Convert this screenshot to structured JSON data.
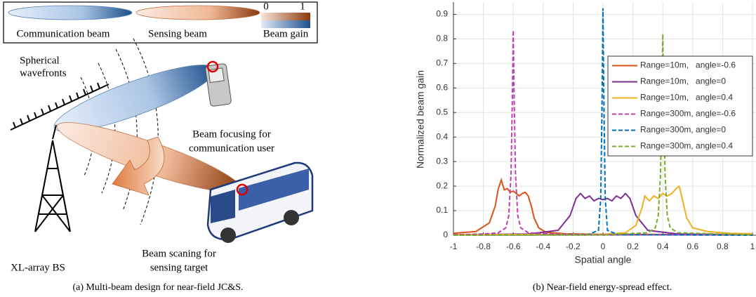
{
  "figure_a": {
    "legend": {
      "items": [
        "Communication beam",
        "Sensing beam",
        "Beam gain"
      ],
      "colorbar_ticks": [
        "0",
        "1"
      ]
    },
    "wavefront_label": [
      "Spherical",
      "wavefronts"
    ],
    "focus_label": [
      "Beam focusing for",
      "communication user"
    ],
    "bs_label": "XL-array BS",
    "scan_label": [
      "Beam scaning for",
      "sensing target"
    ],
    "caption": "(a) Multi-beam design for near-field JC&S."
  },
  "figure_b": {
    "caption": "(b) Near-field energy-spread effect."
  },
  "chart_data": {
    "type": "line",
    "xlabel": "Spatial angle",
    "ylabel": "Normalized beam gain",
    "xlim": [
      -1,
      1
    ],
    "ylim": [
      0,
      0.95
    ],
    "xticks": [
      -1,
      -0.8,
      -0.6,
      -0.4,
      -0.2,
      0,
      0.2,
      0.4,
      0.6,
      0.8,
      1
    ],
    "yticks": [
      0,
      0.1,
      0.2,
      0.3,
      0.4,
      0.5,
      0.6,
      0.7,
      0.8,
      0.9
    ],
    "grid": true,
    "legend": "upper right",
    "series": [
      {
        "name": "Range=10m,   angle=-0.6",
        "color": "#d95319",
        "style": "solid",
        "x": [
          -1,
          -0.85,
          -0.76,
          -0.72,
          -0.7,
          -0.68,
          -0.66,
          -0.64,
          -0.62,
          -0.6,
          -0.58,
          -0.56,
          -0.54,
          -0.52,
          -0.5,
          -0.48,
          -0.46,
          -0.43,
          -0.38,
          -0.25,
          0,
          0.5,
          1
        ],
        "values": [
          0.008,
          0.015,
          0.05,
          0.12,
          0.19,
          0.225,
          0.185,
          0.19,
          0.175,
          0.18,
          0.17,
          0.16,
          0.17,
          0.175,
          0.16,
          0.12,
          0.07,
          0.03,
          0.012,
          0.006,
          0.004,
          0.003,
          0.003
        ]
      },
      {
        "name": "Range=10m,   angle=0",
        "color": "#7e2f8e",
        "style": "solid",
        "x": [
          -1,
          -0.5,
          -0.3,
          -0.22,
          -0.18,
          -0.15,
          -0.12,
          -0.09,
          -0.06,
          -0.03,
          0,
          0.03,
          0.06,
          0.09,
          0.12,
          0.15,
          0.18,
          0.22,
          0.3,
          0.5,
          1
        ],
        "values": [
          0.002,
          0.005,
          0.02,
          0.08,
          0.15,
          0.17,
          0.15,
          0.16,
          0.14,
          0.15,
          0.145,
          0.15,
          0.14,
          0.16,
          0.15,
          0.17,
          0.15,
          0.08,
          0.02,
          0.005,
          0.002
        ]
      },
      {
        "name": "Range=10m,   angle=0.4",
        "color": "#edb120",
        "style": "solid",
        "x": [
          -1,
          0,
          0.15,
          0.22,
          0.26,
          0.28,
          0.31,
          0.34,
          0.37,
          0.4,
          0.43,
          0.46,
          0.49,
          0.51,
          0.53,
          0.56,
          0.6,
          0.7,
          0.85,
          1
        ],
        "values": [
          0.002,
          0.004,
          0.01,
          0.04,
          0.11,
          0.16,
          0.14,
          0.16,
          0.15,
          0.17,
          0.16,
          0.17,
          0.19,
          0.2,
          0.15,
          0.07,
          0.03,
          0.015,
          0.008,
          0.006
        ]
      },
      {
        "name": "Range=300m, angle=-0.6",
        "color": "#c040b0",
        "style": "dashed",
        "x": [
          -1,
          -0.8,
          -0.7,
          -0.65,
          -0.63,
          -0.615,
          -0.605,
          -0.6,
          -0.595,
          -0.585,
          -0.57,
          -0.55,
          -0.5,
          -0.3,
          0,
          1
        ],
        "values": [
          0.002,
          0.005,
          0.01,
          0.03,
          0.08,
          0.25,
          0.6,
          0.835,
          0.6,
          0.25,
          0.08,
          0.03,
          0.01,
          0.004,
          0.002,
          0.001
        ]
      },
      {
        "name": "Range=300m, angle=0",
        "color": "#0072bd",
        "style": "dashed",
        "x": [
          -1,
          -0.1,
          -0.03,
          -0.015,
          -0.005,
          0,
          0.005,
          0.015,
          0.03,
          0.1,
          1
        ],
        "values": [
          0,
          0.002,
          0.02,
          0.15,
          0.6,
          0.925,
          0.6,
          0.15,
          0.02,
          0.002,
          0
        ]
      },
      {
        "name": "Range=300m, angle=0.4",
        "color": "#77ac30",
        "style": "dashed",
        "x": [
          -1,
          0,
          0.3,
          0.35,
          0.37,
          0.385,
          0.395,
          0.4,
          0.405,
          0.415,
          0.43,
          0.45,
          0.5,
          1
        ],
        "values": [
          0,
          0.001,
          0.01,
          0.03,
          0.08,
          0.25,
          0.6,
          0.82,
          0.6,
          0.25,
          0.08,
          0.03,
          0.01,
          0.001
        ]
      }
    ]
  }
}
